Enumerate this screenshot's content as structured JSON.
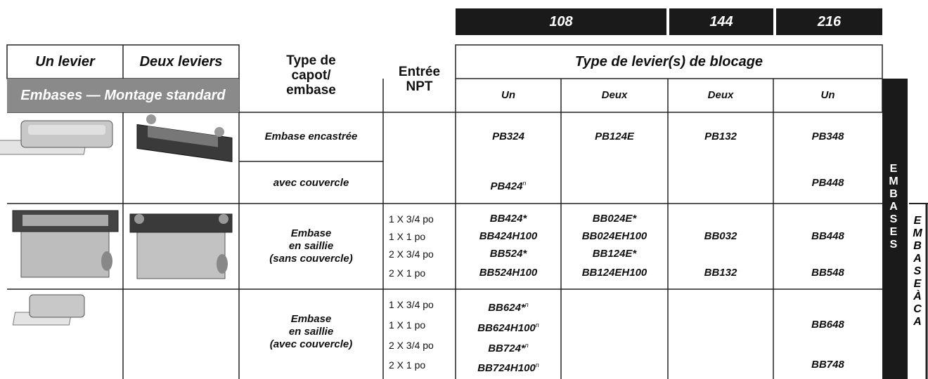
{
  "header": {
    "pole_counts": [
      "108",
      "144",
      "216"
    ]
  },
  "table": {
    "col_headers": {
      "un_levier": "Un levier",
      "deux_leviers": "Deux leviers",
      "type": [
        "Type de",
        "capot/",
        "embase"
      ],
      "entree": [
        "Entrée",
        "NPT"
      ],
      "levier_type": "Type de levier(s) de blocage"
    },
    "section": "Embases — Montage standard",
    "lever_cols": [
      "Un",
      "Deux",
      "Deux",
      "Un"
    ],
    "rows": [
      {
        "type": [
          "Embase encastrée"
        ],
        "npt": [],
        "cells": [
          [
            "PB324"
          ],
          [
            "PB124E"
          ],
          [
            "PB132"
          ],
          [
            "PB348"
          ]
        ]
      },
      {
        "type": [
          "avec couvercle"
        ],
        "npt": [],
        "cells": [
          [
            {
              "text": "PB424",
              "note": "n"
            }
          ],
          [],
          [],
          [
            "PB448"
          ]
        ]
      },
      {
        "type": [
          "Embase",
          "en saillie",
          "(sans couvercle)"
        ],
        "npt": [
          "1 X 3/4 po",
          "1 X 1 po",
          "2 X 3/4 po",
          "2 X 1 po"
        ],
        "cells": [
          [
            "BB424*",
            "BB424H100",
            "BB524*",
            "BB524H100"
          ],
          [
            "BB024E*",
            "BB024EH100",
            "BB124E*",
            "BB124EH100"
          ],
          [
            null,
            "BB032",
            null,
            "BB132"
          ],
          [
            null,
            "BB448",
            null,
            "BB548"
          ]
        ]
      },
      {
        "type": [
          "Embase",
          "en saillie",
          "(avec couvercle)"
        ],
        "npt": [
          "1 X 3/4 po",
          "1 X 1 po",
          "2 X 3/4 po",
          "2 X 1 po"
        ],
        "cells": [
          [
            {
              "text": "BB624*",
              "note": "n"
            },
            {
              "text": "BB624H100",
              "note": "n"
            },
            {
              "text": "BB724*",
              "note": "n"
            },
            {
              "text": "BB724H100",
              "note": "n"
            }
          ],
          [],
          [],
          [
            null,
            "BB648",
            null,
            "BB748"
          ]
        ]
      }
    ]
  },
  "side_tabs": [
    "EMBASES",
    "EMBASE À CA"
  ]
}
